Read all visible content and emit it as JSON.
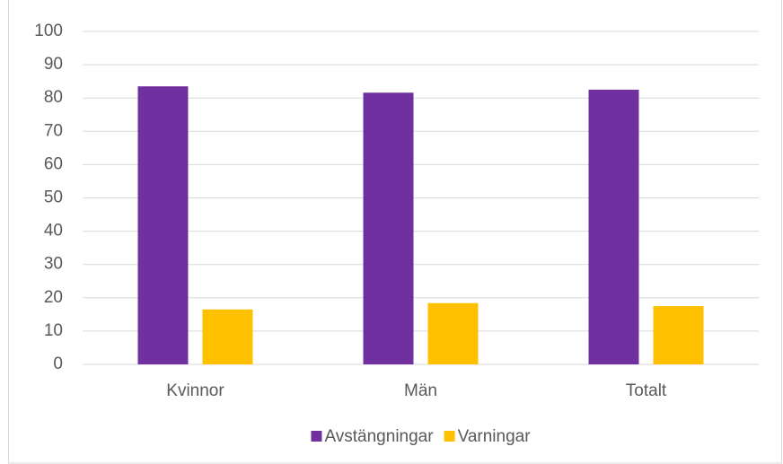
{
  "chart_data": {
    "type": "bar",
    "categories": [
      "Kvinnor",
      "Män",
      "Totalt"
    ],
    "series": [
      {
        "name": "Avstängningar",
        "color": "#7030a0",
        "values": [
          83.5,
          81.6,
          82.5
        ]
      },
      {
        "name": "Varningar",
        "color": "#ffc000",
        "values": [
          16.5,
          18.4,
          17.5
        ]
      }
    ],
    "ylim": [
      0,
      100
    ],
    "yticks": [
      0,
      10,
      20,
      30,
      40,
      50,
      60,
      70,
      80,
      90,
      100
    ],
    "grid": true,
    "legend": "bottom"
  }
}
